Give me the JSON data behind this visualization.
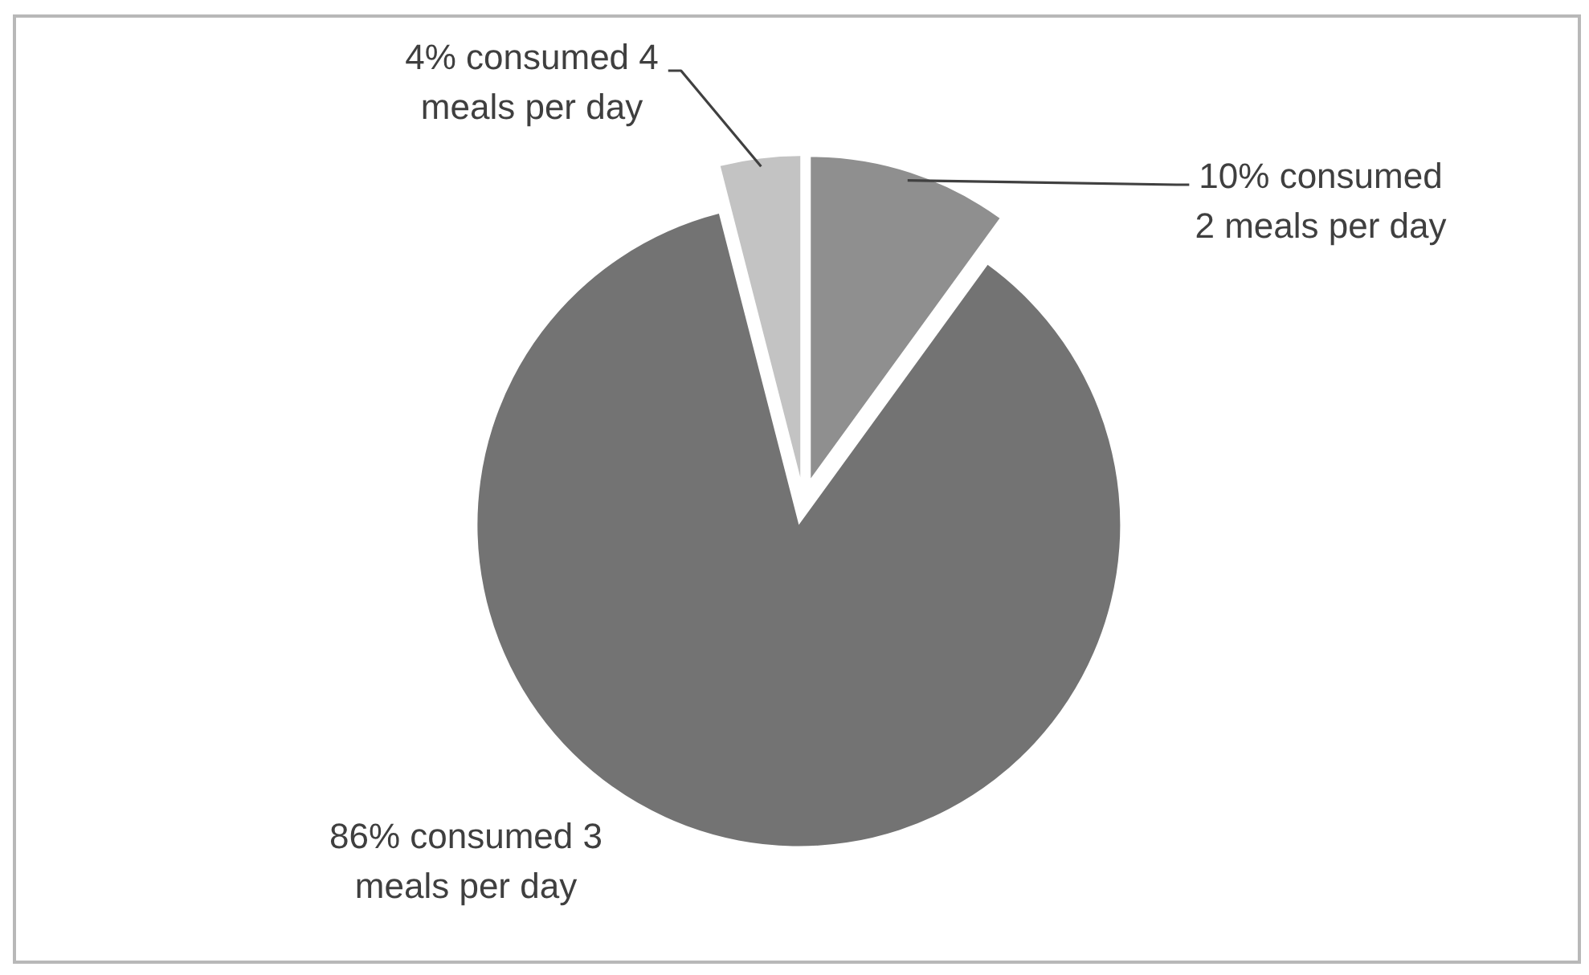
{
  "chart_data": {
    "type": "pie",
    "categories": [
      "10% consumed 2 meals per day",
      "86% consumed 3 meals per day",
      "4% consumed 4 meals per day"
    ],
    "values": [
      10,
      86,
      4
    ],
    "colors": [
      "#8f8f8f",
      "#737373",
      "#c3c3c3"
    ]
  }
}
